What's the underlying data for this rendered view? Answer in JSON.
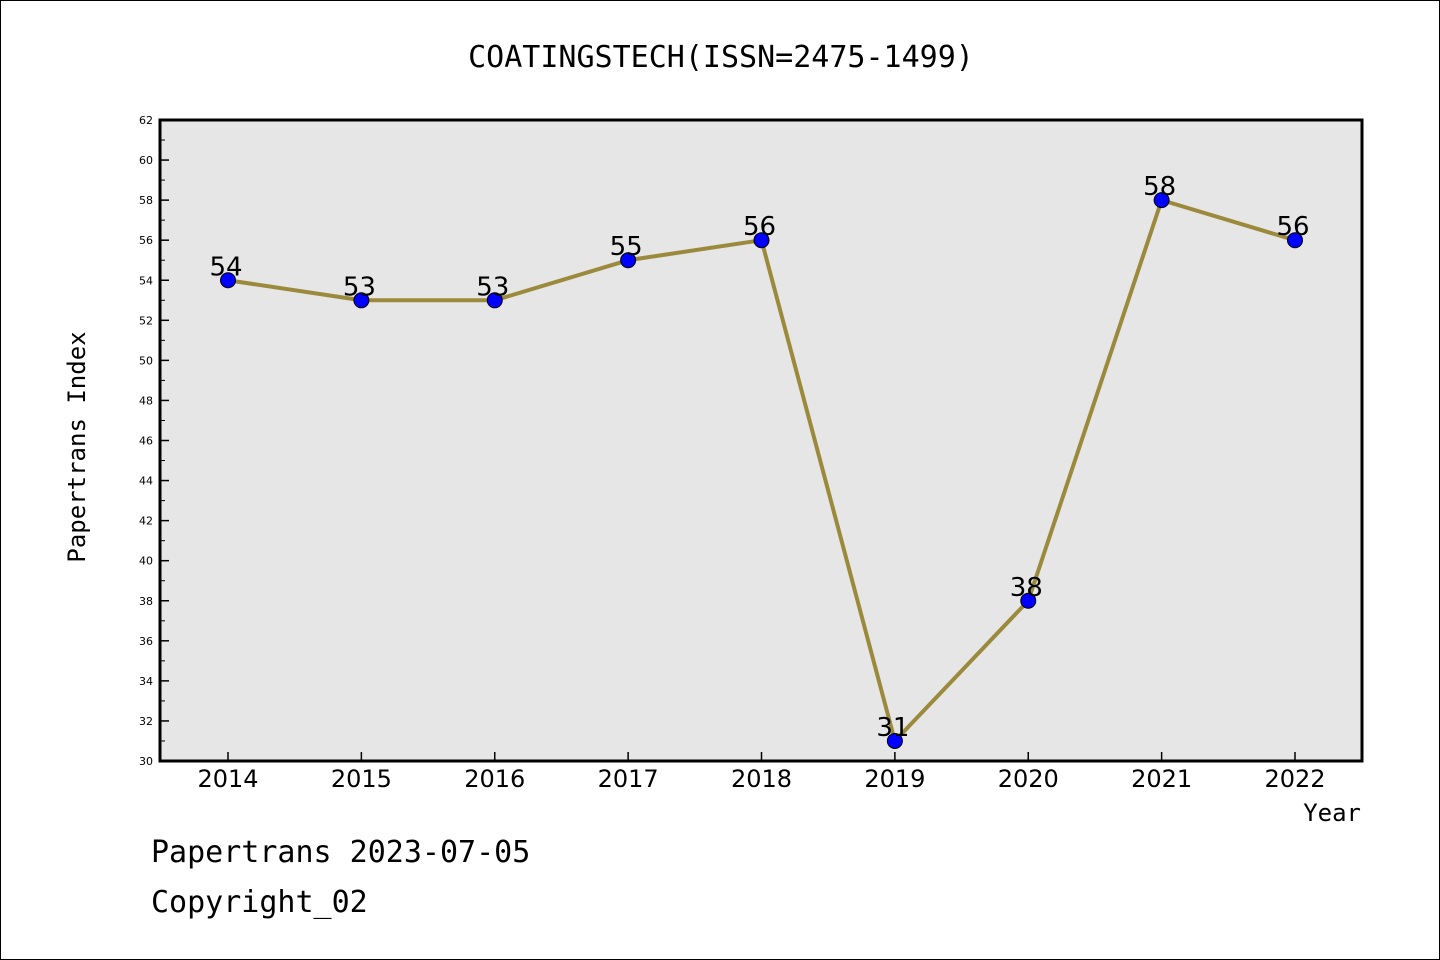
{
  "chart_data": {
    "type": "line",
    "title": "COATINGSTECH(ISSN=2475-1499)",
    "xlabel": "Year",
    "ylabel": "Papertrans Index",
    "categories": [
      "2014",
      "2015",
      "2016",
      "2017",
      "2018",
      "2019",
      "2020",
      "2021",
      "2022"
    ],
    "values": [
      54,
      53,
      53,
      55,
      56,
      31,
      38,
      58,
      56
    ],
    "ylim": [
      30,
      62
    ],
    "yticks": [
      30,
      32,
      34,
      36,
      38,
      40,
      42,
      44,
      46,
      48,
      50,
      52,
      54,
      56,
      58,
      60,
      62
    ],
    "line_color": "#9b8a3c",
    "marker_color": "#0000ff",
    "plot_background": "#e6e6e6",
    "grid": false,
    "legend": "none"
  },
  "footer": {
    "line1": "Papertrans 2023-07-05",
    "line2": "Copyright_02"
  }
}
